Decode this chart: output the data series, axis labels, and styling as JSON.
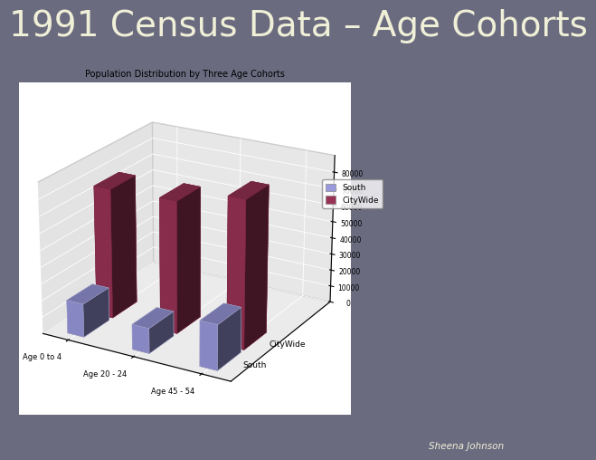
{
  "title_main": "1991 Census Data – Age Cohorts",
  "chart_title": "Population Distribution by Three Age Cohorts",
  "categories": [
    "Age 0 to 4",
    "Age 20 - 24",
    "Age 45 - 54"
  ],
  "south_values": [
    20000,
    15000,
    27000
  ],
  "citywide_values": [
    78000,
    79000,
    88000
  ],
  "south_color": "#9999dd",
  "citywide_color": "#993355",
  "ymax": 90000,
  "yticks": [
    0,
    10000,
    20000,
    30000,
    40000,
    50000,
    60000,
    70000,
    80000
  ],
  "ytick_labels": [
    "0",
    "10000",
    "20000",
    "30000",
    "40000",
    "50000",
    "60000",
    "70000",
    "80000"
  ],
  "bg_color": "#6b6b80",
  "plot_bg": "#d8d8d8",
  "floor_color": "#b0b0b0",
  "author": "Sheena Johnson",
  "title_fontsize": 28,
  "title_color": "#f0f0d8",
  "chart_title_fontsize": 7,
  "legend_labels": [
    "South",
    "CityWide"
  ],
  "axis_label_south": "South",
  "axis_label_citywide": "CityWide"
}
